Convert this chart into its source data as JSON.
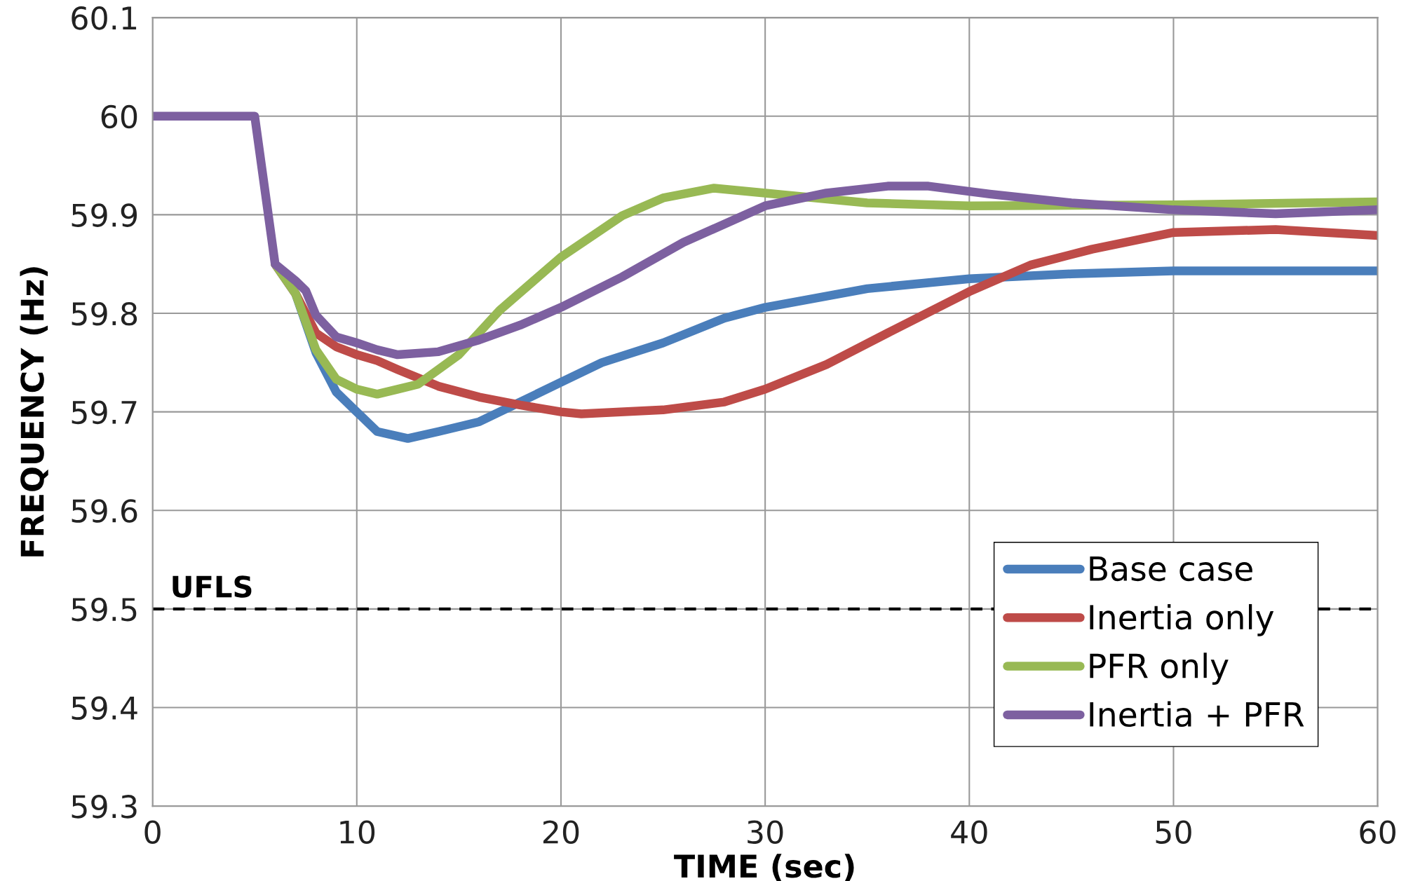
{
  "chart_data": {
    "type": "line",
    "xlabel": "TIME (sec)",
    "ylabel": "FREQUENCY (Hz)",
    "xlim": [
      0,
      60
    ],
    "ylim": [
      59.3,
      60.1
    ],
    "xticks": [
      0,
      10,
      20,
      30,
      40,
      50,
      60
    ],
    "yticks": [
      59.3,
      59.4,
      59.5,
      59.6,
      59.7,
      59.8,
      59.9,
      60,
      60.1
    ],
    "grid": true,
    "legend": "bottom right",
    "line_style": "solid",
    "ref_lines": [
      {
        "axis": "y",
        "value": 59.5,
        "label": "UFLS",
        "color": "#000000",
        "line_style": "dashed"
      }
    ],
    "series": [
      {
        "name": "Base case",
        "color": "#4a7ebb",
        "x": [
          6,
          7,
          8,
          9,
          10,
          11,
          12.5,
          14,
          16,
          18,
          20,
          22,
          25,
          28,
          30,
          35,
          40,
          45,
          50,
          60
        ],
        "values": [
          59.85,
          59.82,
          59.76,
          59.72,
          59.7,
          59.68,
          59.673,
          59.68,
          59.69,
          59.71,
          59.73,
          59.75,
          59.77,
          59.795,
          59.806,
          59.825,
          59.835,
          59.84,
          59.843,
          59.843
        ]
      },
      {
        "name": "Inertia only",
        "color": "#be4b48",
        "x": [
          6,
          7,
          8,
          9,
          10,
          11,
          12,
          14,
          16,
          18,
          20,
          21,
          25,
          28,
          30,
          33,
          36,
          40,
          43,
          46,
          50,
          55,
          60
        ],
        "values": [
          59.85,
          59.82,
          59.78,
          59.766,
          59.758,
          59.752,
          59.743,
          59.726,
          59.715,
          59.707,
          59.7,
          59.698,
          59.702,
          59.71,
          59.723,
          59.748,
          59.78,
          59.822,
          59.849,
          59.865,
          59.882,
          59.885,
          59.879
        ]
      },
      {
        "name": "PFR only",
        "color": "#98b954",
        "x": [
          6,
          7,
          8,
          9,
          10,
          11,
          12,
          13,
          15,
          17,
          20,
          23,
          25,
          27.5,
          30,
          35,
          40,
          50,
          60
        ],
        "values": [
          59.85,
          59.82,
          59.763,
          59.733,
          59.723,
          59.718,
          59.723,
          59.728,
          59.758,
          59.803,
          59.857,
          59.899,
          59.917,
          59.927,
          59.922,
          59.912,
          59.909,
          59.91,
          59.913
        ]
      },
      {
        "name": "Inertia + PFR",
        "color": "#7d60a0",
        "x": [
          0,
          5,
          6,
          7,
          7.5,
          8,
          9,
          10,
          11,
          12,
          14,
          16,
          18,
          20,
          23,
          26,
          30,
          33,
          36,
          38,
          41,
          45,
          50,
          55,
          60
        ],
        "values": [
          60,
          60,
          59.85,
          59.833,
          59.823,
          59.798,
          59.776,
          59.77,
          59.763,
          59.758,
          59.761,
          59.773,
          59.788,
          59.806,
          59.837,
          59.872,
          59.909,
          59.922,
          59.929,
          59.929,
          59.921,
          59.912,
          59.905,
          59.901,
          59.905
        ]
      }
    ]
  }
}
